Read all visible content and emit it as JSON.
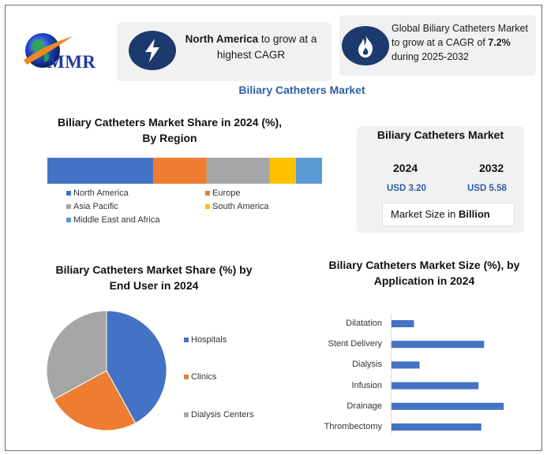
{
  "brand": {
    "logo_text": "MMR"
  },
  "highlights": {
    "fastest_region": {
      "strong": "North America",
      "rest_line1": " to grow at a",
      "rest_line2": "highest CAGR"
    },
    "cagr": {
      "line1": "Global Biliary Catheters Market",
      "line2_prefix": "to grow at a CAGR of ",
      "line2_value": "7.2%",
      "line3": "during 2025-2032"
    }
  },
  "main_title": "Biliary Catheters Market",
  "market_size": {
    "title": "Biliary Catheters Market",
    "year_start": "2024",
    "year_end": "2032",
    "value_start": "USD 3.20",
    "value_end": "USD 5.58",
    "unit_prefix": "Market Size in ",
    "unit_strong": "Billion"
  },
  "chart_data": [
    {
      "type": "bar",
      "orientation": "horizontal-stacked-100",
      "title": "Biliary Catheters Market Share in 2024 (%), By Region",
      "legend_position": "bottom",
      "series": [
        {
          "name": "North America",
          "values": [
            38.5
          ]
        },
        {
          "name": "Europe",
          "values": [
            19.5
          ]
        },
        {
          "name": "Asia Pacific",
          "values": [
            23
          ]
        },
        {
          "name": "South America",
          "values": [
            9.5
          ]
        },
        {
          "name": "Middle East and Africa",
          "values": [
            9.5
          ]
        }
      ],
      "colors": [
        "#4472c4",
        "#ed7d31",
        "#a5a5a5",
        "#ffc000",
        "#5b9bd5"
      ]
    },
    {
      "type": "pie",
      "title": "Biliary Catheters Market Share (%) by End User in 2024",
      "legend_position": "right",
      "categories": [
        "Hospitals",
        "Clinics",
        "Dialysis Centers"
      ],
      "values": [
        42,
        25,
        33
      ],
      "colors": [
        "#4472c4",
        "#ed7d31",
        "#a5a5a5"
      ]
    },
    {
      "type": "bar",
      "orientation": "horizontal",
      "title": "Biliary Catheters Market Size (%), by Application in 2024",
      "categories": [
        "Dilatation",
        "Stent Delivery",
        "Dialysis",
        "Infusion",
        "Drainage",
        "Thrombectomy"
      ],
      "values": [
        8,
        33,
        10,
        31,
        40,
        32
      ],
      "xlim": [
        0,
        45
      ],
      "color": "#4472c4"
    }
  ]
}
